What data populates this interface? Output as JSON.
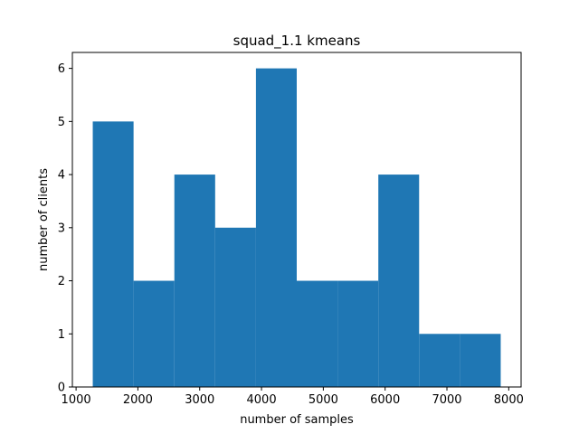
{
  "chart_data": {
    "type": "bar",
    "title": "squad_1.1 kmeans",
    "xlabel": "number of samples",
    "ylabel": "number of clients",
    "bins": [
      {
        "start": 1270,
        "end": 1930,
        "count": 5
      },
      {
        "start": 1930,
        "end": 2590,
        "count": 2
      },
      {
        "start": 2590,
        "end": 3250,
        "count": 4
      },
      {
        "start": 3250,
        "end": 3910,
        "count": 3
      },
      {
        "start": 3910,
        "end": 4570,
        "count": 6
      },
      {
        "start": 4570,
        "end": 5230,
        "count": 2
      },
      {
        "start": 5230,
        "end": 5890,
        "count": 2
      },
      {
        "start": 5890,
        "end": 6550,
        "count": 4
      },
      {
        "start": 6550,
        "end": 7210,
        "count": 1
      },
      {
        "start": 7210,
        "end": 7870,
        "count": 1
      }
    ],
    "xlim": [
      940,
      8200
    ],
    "ylim": [
      0,
      6.3
    ],
    "xticks": [
      "1000",
      "2000",
      "3000",
      "4000",
      "5000",
      "6000",
      "7000",
      "8000"
    ],
    "yticks": [
      "0",
      "1",
      "2",
      "3",
      "4",
      "5",
      "6"
    ],
    "grid": false,
    "bar_color": "#1f77b4"
  }
}
